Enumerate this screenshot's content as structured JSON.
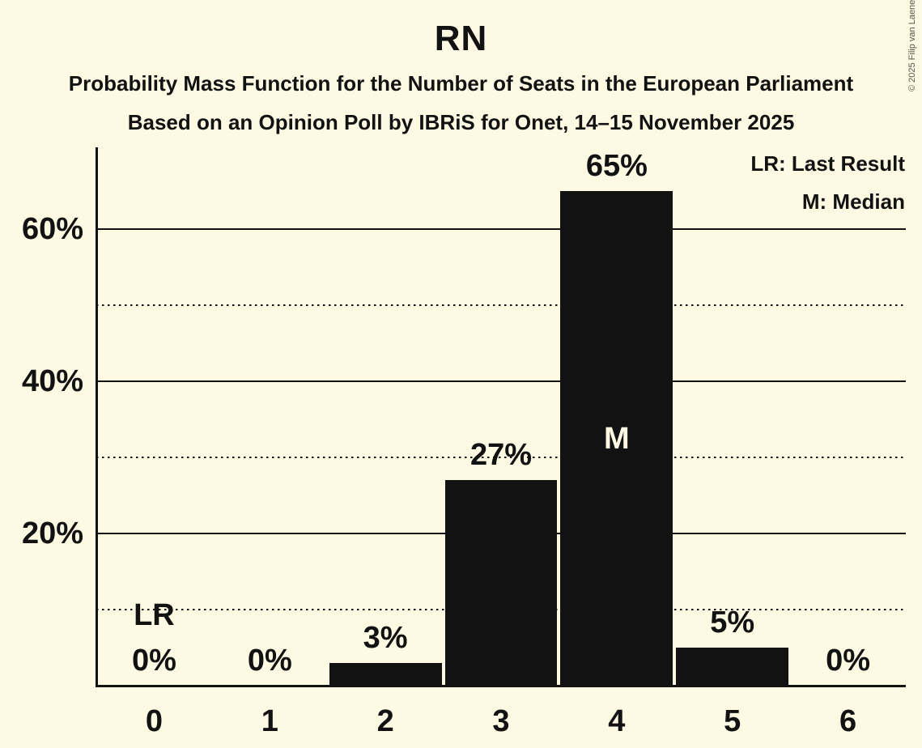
{
  "title": "RN",
  "subtitles": [
    "Probability Mass Function for the Number of Seats in the European Parliament",
    "Based on an Opinion Poll by IBRiS for Onet, 14–15 November 2025"
  ],
  "copyright": "© 2025 Filip van Laenen",
  "legend": {
    "last_result": "LR: Last Result",
    "median": "M: Median"
  },
  "colors": {
    "background": "#FDF9E3",
    "bar": "#121212",
    "text": "#121212",
    "label_inside_bar": "#FDF9E3"
  },
  "chart_data": {
    "type": "bar",
    "title": "RN",
    "categories": [
      "0",
      "1",
      "2",
      "3",
      "4",
      "5",
      "6"
    ],
    "values": [
      0,
      0,
      3,
      27,
      65,
      5,
      0
    ],
    "bar_labels": [
      "0%",
      "0%",
      "3%",
      "27%",
      "65%",
      "5%",
      "0%"
    ],
    "xlabel": "",
    "ylabel": "",
    "ylim": [
      0,
      70.7
    ],
    "y_solid_gridlines": [
      20,
      40,
      60
    ],
    "y_dotted_gridlines": [
      10,
      30,
      50
    ],
    "y_tick_labels": [
      {
        "value": 20,
        "label": "20%"
      },
      {
        "value": 40,
        "label": "40%"
      },
      {
        "value": 60,
        "label": "60%"
      }
    ],
    "annotations": [
      {
        "label": "LR",
        "category": "0",
        "meaning": "Last Result",
        "placement": "above-bar-label"
      },
      {
        "label": "M",
        "category": "4",
        "meaning": "Median",
        "placement": "inside-bar"
      }
    ],
    "legend_position": "top-right",
    "grid": true
  }
}
